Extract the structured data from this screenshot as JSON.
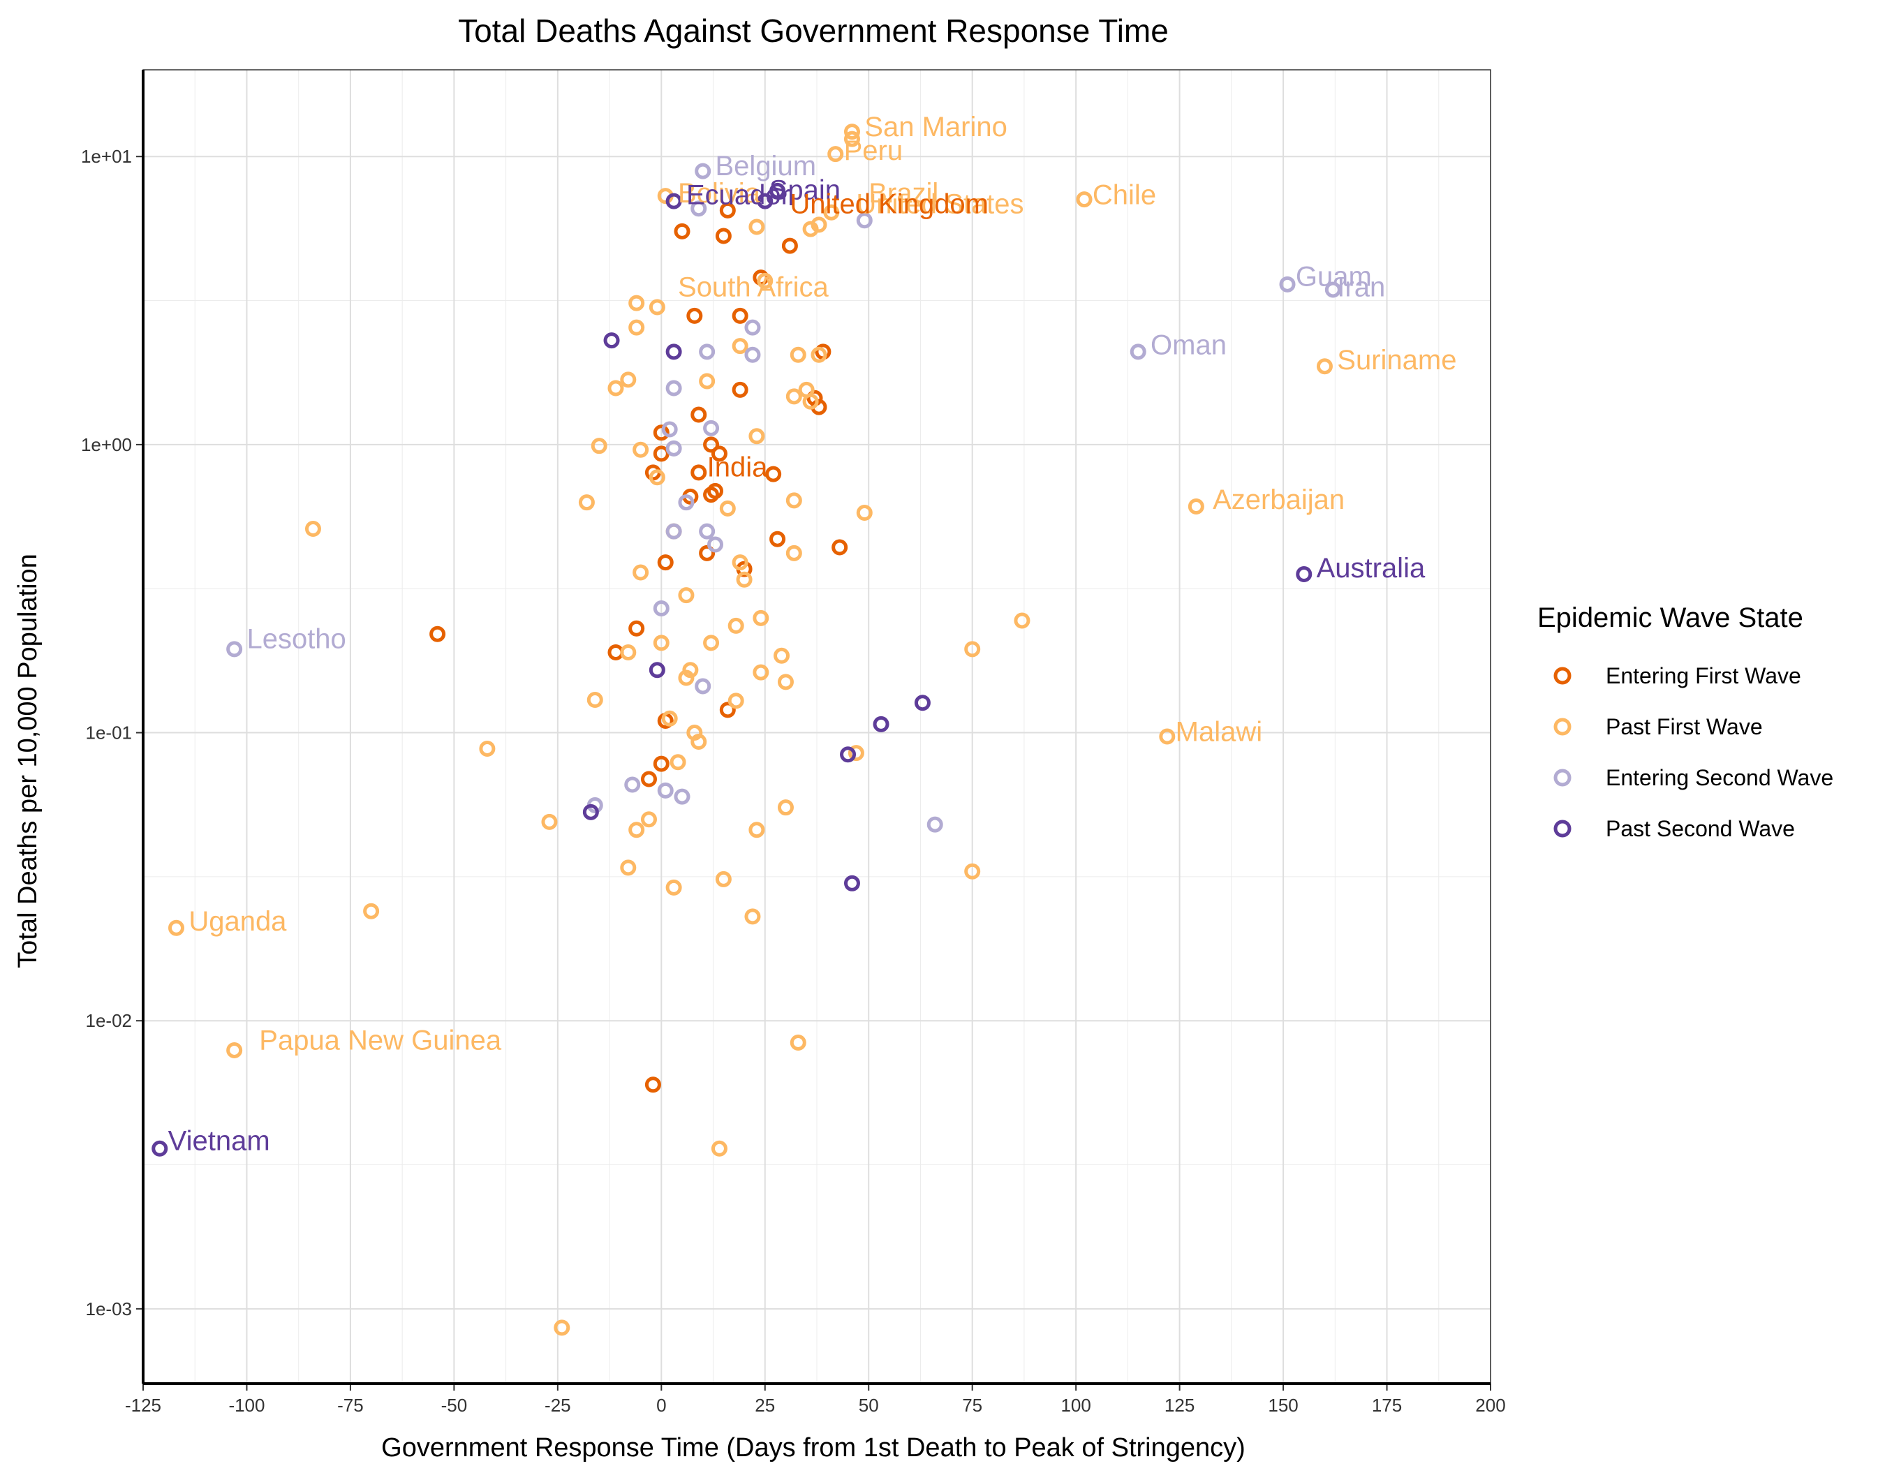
{
  "chart_data": {
    "type": "scatter",
    "title": "Total Deaths Against Government Response Time",
    "xlabel": "Government Response Time (Days from 1st Death to Peak of Stringency)",
    "ylabel": "Total Deaths per 10,000 Population",
    "xlim": [
      -125,
      200
    ],
    "ylim": [
      0.00055,
      20
    ],
    "yscale": "log",
    "x_ticks": [
      -125,
      -100,
      -75,
      -50,
      -25,
      0,
      25,
      50,
      75,
      100,
      125,
      150,
      175,
      200
    ],
    "x_tick_labels": [
      "-125",
      "-100",
      "-75",
      "-50",
      "-25",
      "0",
      "25",
      "50",
      "75",
      "100",
      "125",
      "150",
      "175",
      "200"
    ],
    "y_ticks": [
      0.001,
      0.01,
      0.1,
      1,
      10
    ],
    "y_tick_labels": [
      "1e-03",
      "1e-02",
      "1e-01",
      "1e+00",
      "1e+01"
    ],
    "grid": true,
    "legend": {
      "title": "Epidemic Wave State",
      "position": "right"
    },
    "series": [
      {
        "name": "Entering First Wave",
        "color": "#e66101",
        "points": [
          [
            5,
            5.5
          ],
          [
            16,
            6.5
          ],
          [
            15,
            5.3
          ],
          [
            31,
            4.9
          ],
          [
            24,
            3.8
          ],
          [
            8,
            2.8
          ],
          [
            19,
            2.8
          ],
          [
            39,
            2.1
          ],
          [
            19,
            1.55
          ],
          [
            9,
            1.27
          ],
          [
            37,
            1.45
          ],
          [
            38,
            1.35
          ],
          [
            0,
            1.1
          ],
          [
            12,
            1.0
          ],
          [
            14,
            0.93
          ],
          [
            0,
            0.93
          ],
          [
            -2,
            0.8
          ],
          [
            9,
            0.8
          ],
          [
            27,
            0.79
          ],
          [
            7,
            0.66
          ],
          [
            13,
            0.69
          ],
          [
            12,
            0.67
          ],
          [
            28,
            0.47
          ],
          [
            43,
            0.44
          ],
          [
            11,
            0.42
          ],
          [
            1,
            0.39
          ],
          [
            20,
            0.37
          ],
          [
            -54,
            0.22
          ],
          [
            -6,
            0.23
          ],
          [
            -11,
            0.19
          ],
          [
            16,
            0.12
          ],
          [
            1,
            0.11
          ],
          [
            0,
            0.078
          ],
          [
            -3,
            0.069
          ],
          [
            -2,
            0.006
          ]
        ]
      },
      {
        "name": "Past First Wave",
        "color": "#fdb863",
        "points": [
          [
            46,
            12.2
          ],
          [
            46,
            11.5
          ],
          [
            42,
            10.2
          ],
          [
            102,
            7.1
          ],
          [
            1,
            7.3
          ],
          [
            23,
            5.7
          ],
          [
            36,
            5.6
          ],
          [
            38,
            5.8
          ],
          [
            41,
            6.4
          ],
          [
            25,
            3.7
          ],
          [
            -6,
            3.1
          ],
          [
            -1,
            3.0
          ],
          [
            -6,
            2.55
          ],
          [
            19,
            2.2
          ],
          [
            33,
            2.05
          ],
          [
            38,
            2.05
          ],
          [
            160,
            1.87
          ],
          [
            -8,
            1.68
          ],
          [
            11,
            1.66
          ],
          [
            -11,
            1.57
          ],
          [
            32,
            1.47
          ],
          [
            35,
            1.55
          ],
          [
            36,
            1.41
          ],
          [
            23,
            1.07
          ],
          [
            -15,
            0.99
          ],
          [
            -5,
            0.96
          ],
          [
            -1,
            0.77
          ],
          [
            -18,
            0.63
          ],
          [
            32,
            0.64
          ],
          [
            16,
            0.6
          ],
          [
            49,
            0.58
          ],
          [
            129,
            0.61
          ],
          [
            -84,
            0.51
          ],
          [
            3,
            0.5
          ],
          [
            19,
            0.39
          ],
          [
            32,
            0.42
          ],
          [
            -5,
            0.36
          ],
          [
            20,
            0.34
          ],
          [
            6,
            0.3
          ],
          [
            87,
            0.245
          ],
          [
            24,
            0.25
          ],
          [
            18,
            0.235
          ],
          [
            0,
            0.205
          ],
          [
            12,
            0.205
          ],
          [
            75,
            0.195
          ],
          [
            29,
            0.185
          ],
          [
            -8,
            0.19
          ],
          [
            7,
            0.165
          ],
          [
            6,
            0.155
          ],
          [
            24,
            0.162
          ],
          [
            30,
            0.15
          ],
          [
            -16,
            0.13
          ],
          [
            18,
            0.129
          ],
          [
            2,
            0.112
          ],
          [
            122,
            0.097
          ],
          [
            8,
            0.1
          ],
          [
            9,
            0.093
          ],
          [
            -42,
            0.088
          ],
          [
            47,
            0.085
          ],
          [
            4,
            0.079
          ],
          [
            30,
            0.055
          ],
          [
            -3,
            0.05
          ],
          [
            -27,
            0.049
          ],
          [
            -6,
            0.046
          ],
          [
            23,
            0.046
          ],
          [
            -8,
            0.034
          ],
          [
            75,
            0.033
          ],
          [
            15,
            0.031
          ],
          [
            3,
            0.029
          ],
          [
            -70,
            0.024
          ],
          [
            22,
            0.023
          ],
          [
            -117,
            0.021
          ],
          [
            33,
            0.0084
          ],
          [
            -103,
            0.0079
          ],
          [
            14,
            0.0036
          ],
          [
            -24,
            0.00086
          ]
        ]
      },
      {
        "name": "Entering Second Wave",
        "color": "#b2abd2",
        "points": [
          [
            10,
            8.9
          ],
          [
            9,
            6.6
          ],
          [
            49,
            6.0
          ],
          [
            151,
            3.6
          ],
          [
            162,
            3.45
          ],
          [
            22,
            2.55
          ],
          [
            11,
            2.1
          ],
          [
            22,
            2.05
          ],
          [
            115,
            2.1
          ],
          [
            3,
            1.57
          ],
          [
            2,
            1.13
          ],
          [
            12,
            1.14
          ],
          [
            3,
            0.97
          ],
          [
            6,
            0.63
          ],
          [
            3,
            0.5
          ],
          [
            11,
            0.5
          ],
          [
            13,
            0.45
          ],
          [
            0,
            0.27
          ],
          [
            -103,
            0.195
          ],
          [
            10,
            0.145
          ],
          [
            -16,
            0.056
          ],
          [
            -7,
            0.066
          ],
          [
            1,
            0.063
          ],
          [
            5,
            0.06
          ],
          [
            66,
            0.048
          ]
        ]
      },
      {
        "name": "Past Second Wave",
        "color": "#5e3c99",
        "points": [
          [
            28,
            7.6
          ],
          [
            25,
            7.0
          ],
          [
            3,
            7.0
          ],
          [
            -12,
            2.3
          ],
          [
            3,
            2.1
          ],
          [
            155,
            0.355
          ],
          [
            -1,
            0.165
          ],
          [
            63,
            0.127
          ],
          [
            53,
            0.107
          ],
          [
            45,
            0.084
          ],
          [
            -17,
            0.053
          ],
          [
            46,
            0.03
          ],
          [
            -121,
            0.0036
          ]
        ]
      }
    ],
    "annotations": [
      {
        "text": "San Marino",
        "x": 49,
        "y": 12.6,
        "series": "Past First Wave"
      },
      {
        "text": "Peru",
        "x": 44,
        "y": 10.4,
        "series": "Past First Wave"
      },
      {
        "text": "Belgium",
        "x": 13,
        "y": 9.2,
        "series": "Entering Second Wave"
      },
      {
        "text": "Bolivia",
        "x": 4,
        "y": 7.4,
        "series": "Past First Wave"
      },
      {
        "text": "Brazil",
        "x": 50,
        "y": 7.4,
        "series": "Past First Wave"
      },
      {
        "text": "United States",
        "x": 47,
        "y": 6.8,
        "series": "Past First Wave"
      },
      {
        "text": "Chile",
        "x": 104,
        "y": 7.3,
        "series": "Past First Wave"
      },
      {
        "text": "Spain",
        "x": 26,
        "y": 7.6,
        "series": "Past Second Wave"
      },
      {
        "text": "Ecuador",
        "x": 6,
        "y": 7.3,
        "series": "Past Second Wave"
      },
      {
        "text": "United Kingdom",
        "x": 31,
        "y": 6.8,
        "series": "Entering First Wave"
      },
      {
        "text": "South Africa",
        "x": 4,
        "y": 3.5,
        "series": "Past First Wave"
      },
      {
        "text": "Guam",
        "x": 153,
        "y": 3.8,
        "series": "Entering Second Wave"
      },
      {
        "text": "Iran",
        "x": 163,
        "y": 3.5,
        "series": "Entering Second Wave"
      },
      {
        "text": "Oman",
        "x": 118,
        "y": 2.2,
        "series": "Entering Second Wave"
      },
      {
        "text": "Suriname",
        "x": 163,
        "y": 1.95,
        "series": "Past First Wave"
      },
      {
        "text": "India",
        "x": 11,
        "y": 0.83,
        "series": "Entering First Wave"
      },
      {
        "text": "Azerbaijan",
        "x": 133,
        "y": 0.64,
        "series": "Past First Wave"
      },
      {
        "text": "Australia",
        "x": 158,
        "y": 0.37,
        "series": "Past Second Wave"
      },
      {
        "text": "Lesotho",
        "x": -100,
        "y": 0.21,
        "series": "Entering Second Wave"
      },
      {
        "text": "Malawi",
        "x": 124,
        "y": 0.1,
        "series": "Past First Wave"
      },
      {
        "text": "Uganda",
        "x": -114,
        "y": 0.022,
        "series": "Past First Wave"
      },
      {
        "text": "Papua New Guinea",
        "x": -97,
        "y": 0.0085,
        "series": "Past First Wave"
      },
      {
        "text": "Vietnam",
        "x": -119,
        "y": 0.0038,
        "series": "Past Second Wave"
      }
    ]
  }
}
